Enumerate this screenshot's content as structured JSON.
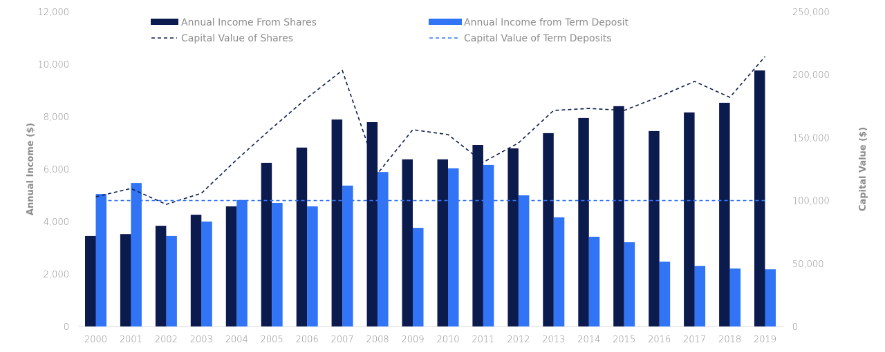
{
  "chart_data": {
    "type": "bar",
    "title": "",
    "xlabel": "",
    "ylabel": "Annual Income ($)",
    "y2label": "Capital Value ($)",
    "ylim": [
      0,
      12000
    ],
    "y2lim": [
      0,
      250000
    ],
    "yticks": [
      "0",
      "2,000",
      "4,000",
      "6,000",
      "8,000",
      "10,000",
      "12,000"
    ],
    "ytick_values": [
      0,
      2000,
      4000,
      6000,
      8000,
      10000,
      12000
    ],
    "y2ticks": [
      "0",
      "50,000",
      "100,000",
      "150,000",
      "200,000",
      "250,000"
    ],
    "y2tick_values": [
      0,
      50000,
      100000,
      150000,
      200000,
      250000
    ],
    "grid": false,
    "legend_position": "top",
    "categories": [
      "2000",
      "2001",
      "2002",
      "2003",
      "2004",
      "2005",
      "2006",
      "2007",
      "2008",
      "2009",
      "2010",
      "2011",
      "2012",
      "2013",
      "2014",
      "2015",
      "2016",
      "2017",
      "2018",
      "2019"
    ],
    "series": [
      {
        "name": "Annual Income From Shares",
        "type": "bar",
        "axis": "left",
        "color": "#0c1b4d",
        "values": [
          3450,
          3520,
          3840,
          4260,
          4580,
          6240,
          6820,
          7890,
          7790,
          6370,
          6370,
          6920,
          6790,
          7370,
          7950,
          8400,
          7450,
          8160,
          8530,
          9760
        ]
      },
      {
        "name": "Annual Income from Term Deposit",
        "type": "bar",
        "axis": "left",
        "color": "#3274f6",
        "values": [
          5050,
          5470,
          3450,
          4000,
          4820,
          4710,
          4580,
          5370,
          5890,
          3760,
          6030,
          6160,
          5000,
          4160,
          3420,
          3210,
          2470,
          2310,
          2210,
          2180
        ]
      },
      {
        "name": "Capital Value of Shares",
        "type": "line",
        "style": "dashed",
        "axis": "right",
        "color": "#0c1b4d",
        "values": [
          103000,
          109600,
          97000,
          105800,
          132500,
          157500,
          181500,
          203400,
          121500,
          156300,
          152400,
          130500,
          145800,
          171600,
          173200,
          171600,
          182600,
          194600,
          182000,
          214400
        ]
      },
      {
        "name": "Capital Value of Term Deposits",
        "type": "line",
        "style": "dashed",
        "axis": "right",
        "color": "#3274f6",
        "values": [
          100000,
          100000,
          100000,
          100000,
          100000,
          100000,
          100000,
          100000,
          100000,
          100000,
          100000,
          100000,
          100000,
          100000,
          100000,
          100000,
          100000,
          100000,
          100000,
          100000
        ]
      }
    ]
  }
}
